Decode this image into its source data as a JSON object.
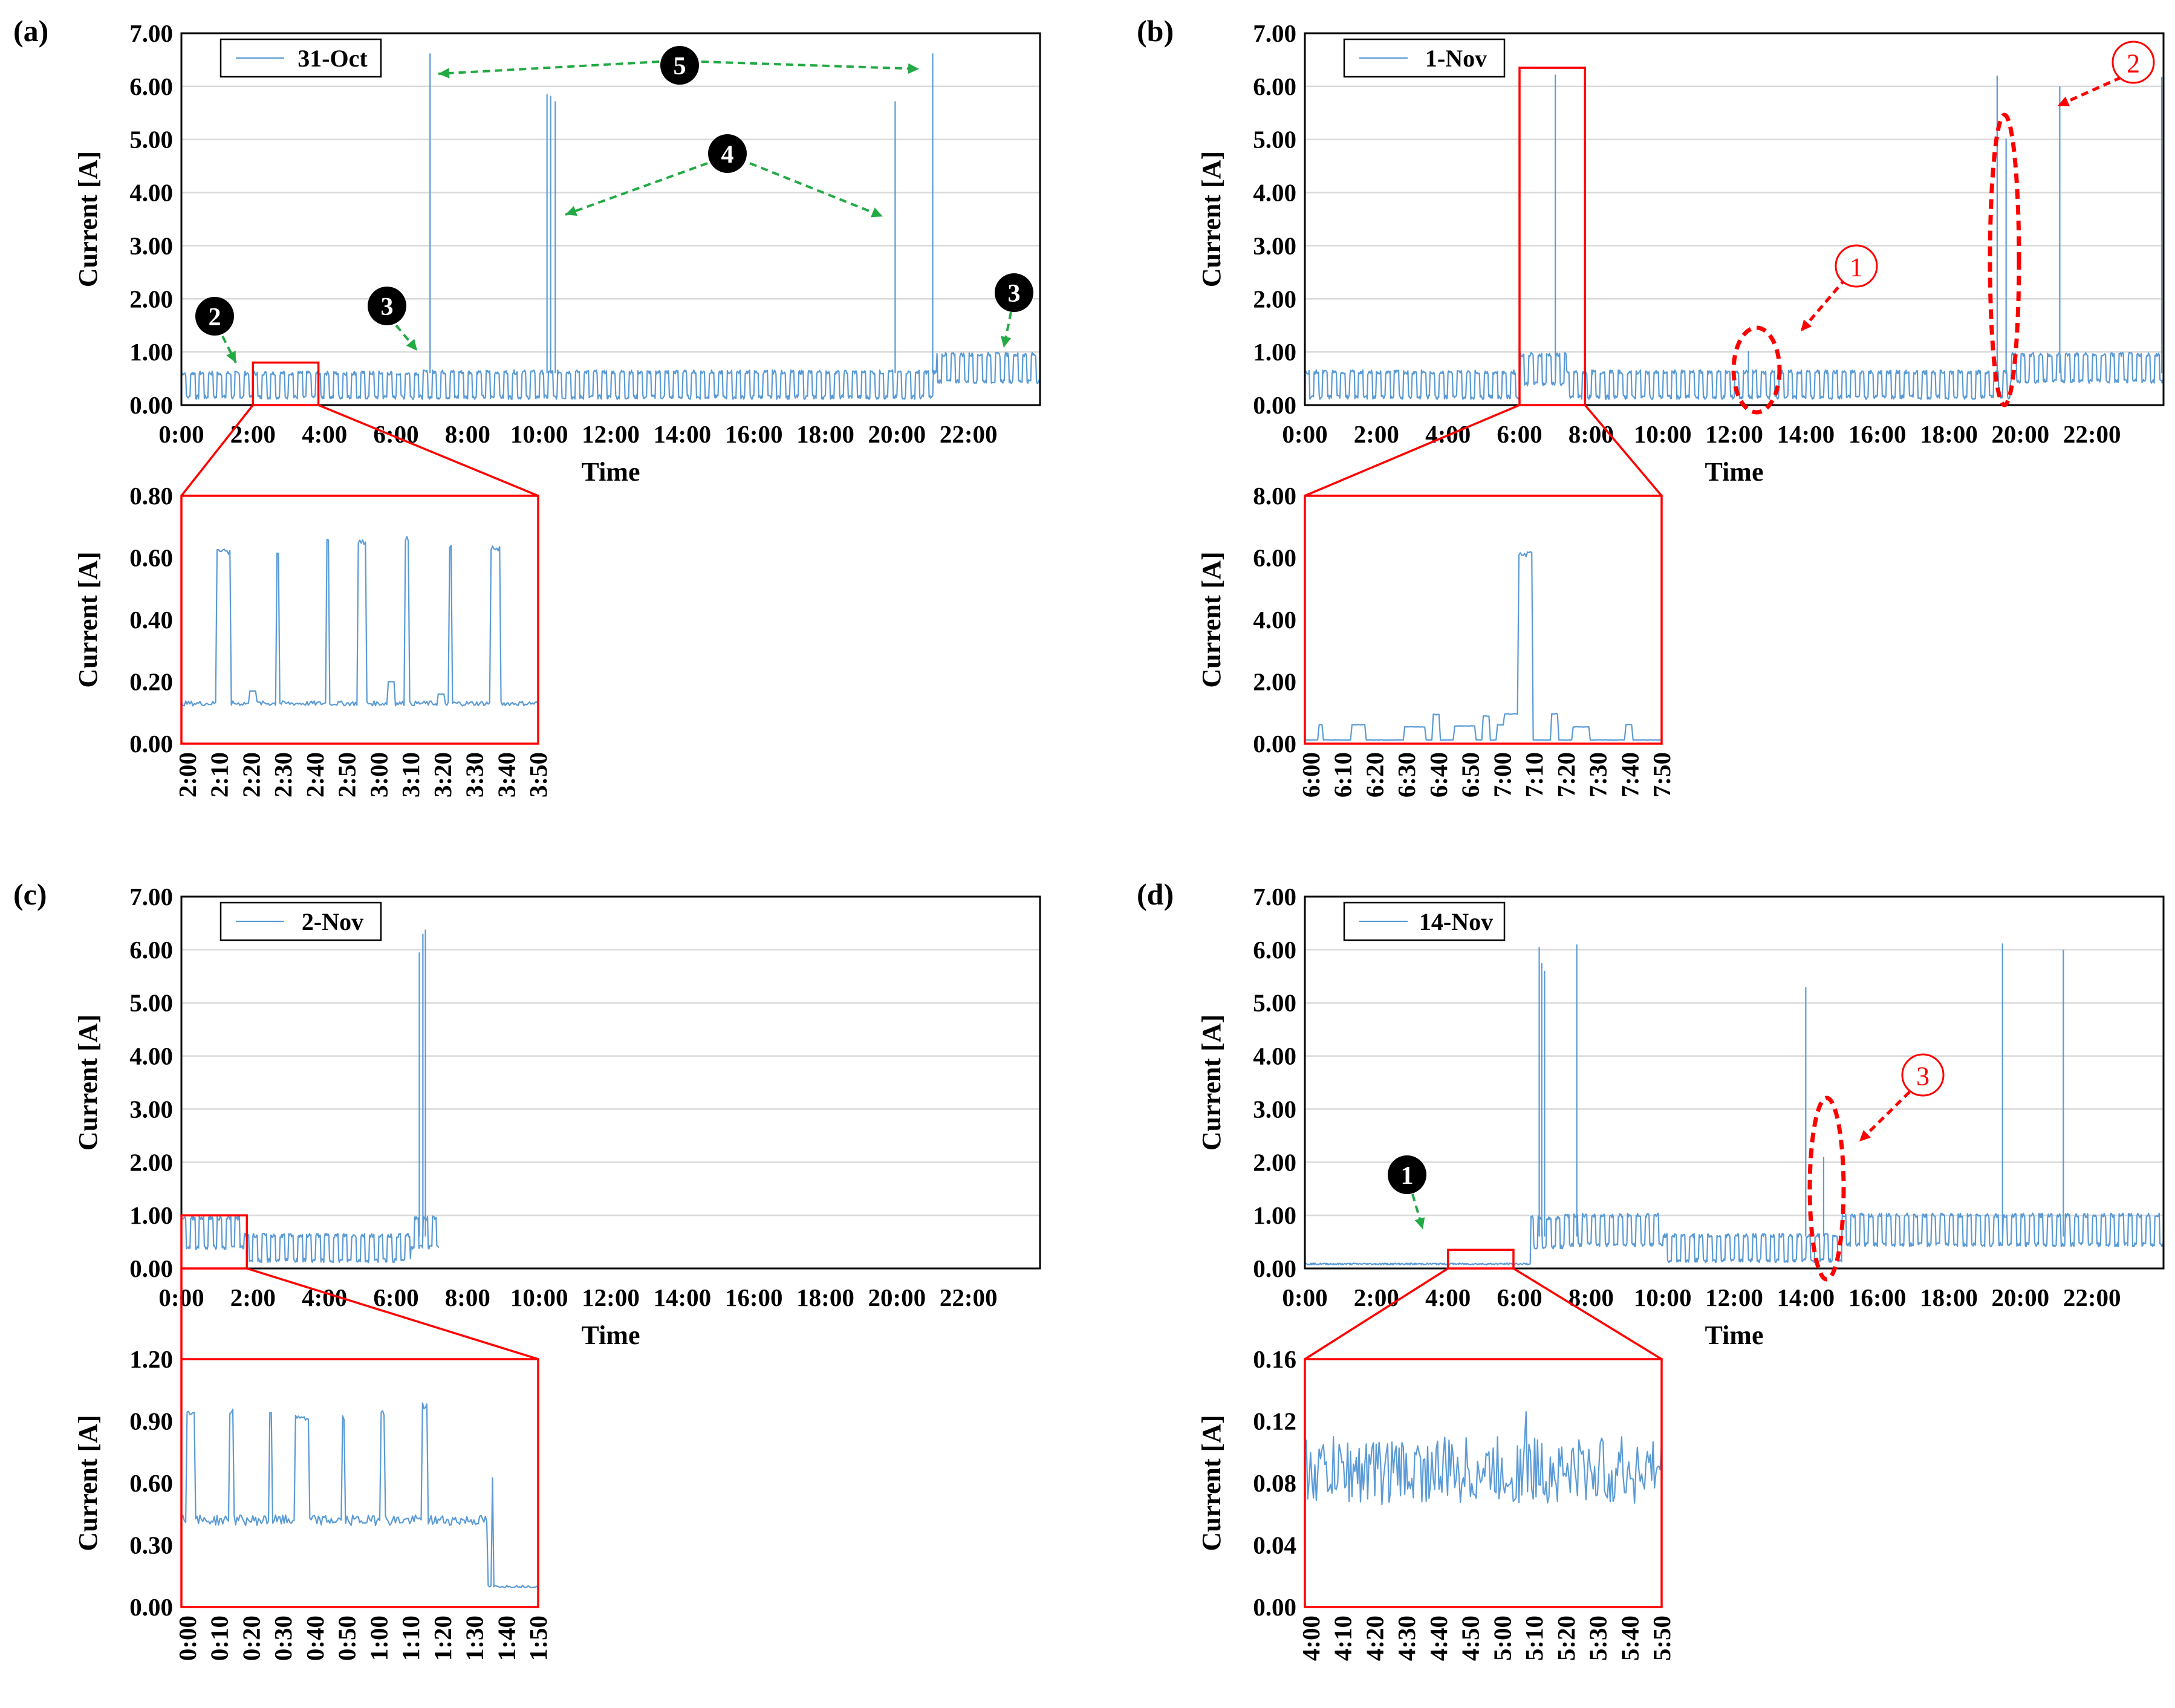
{
  "colors": {
    "series": "#5b9bd5",
    "zoom": "#ff0000",
    "arrow": "#22aa44",
    "grid": "#d9d9d9"
  },
  "axis_titles": {
    "y": "Current [A]",
    "x": "Time"
  },
  "chart_data": [
    {
      "id": "a",
      "panel_label": "(a)",
      "type": "line",
      "legend": "31-Oct",
      "ylim": [
        0,
        7
      ],
      "y_ticks": [
        "0.00",
        "1.00",
        "2.00",
        "3.00",
        "4.00",
        "5.00",
        "6.00",
        "7.00"
      ],
      "x_ticks": [
        "0:00",
        "2:00",
        "4:00",
        "6:00",
        "8:00",
        "10:00",
        "12:00",
        "14:00",
        "16:00",
        "18:00",
        "20:00",
        "22:00"
      ],
      "baseline_segments": [
        {
          "from": 0,
          "to": 6.7,
          "low": 0.15,
          "high": 0.6
        },
        {
          "from": 6.7,
          "to": 21.1,
          "low": 0.15,
          "high": 0.62
        },
        {
          "from": 21.1,
          "to": 24,
          "low": 0.45,
          "high": 0.95
        }
      ],
      "cycle_period_h": 0.25,
      "spikes": [
        {
          "t": 6.95,
          "v": 6.62
        },
        {
          "t": 10.22,
          "v": 5.85
        },
        {
          "t": 10.32,
          "v": 5.82
        },
        {
          "t": 10.45,
          "v": 5.72
        },
        {
          "t": 19.95,
          "v": 5.72
        },
        {
          "t": 21.0,
          "v": 6.62
        }
      ],
      "zoom_range_h": [
        2.0,
        3.83
      ],
      "zoom_y_range": [
        0,
        0.8
      ],
      "zoom": {
        "ylim": [
          0,
          0.8
        ],
        "y_ticks": [
          "0.00",
          "0.20",
          "0.40",
          "0.60",
          "0.80"
        ],
        "x_ticks": [
          "2:00",
          "2:10",
          "2:20",
          "2:30",
          "2:40",
          "2:50",
          "3:00",
          "3:10",
          "3:20",
          "3:30",
          "3:40",
          "3:50"
        ],
        "baseline": 0.13,
        "pulses": [
          {
            "start": 0.1,
            "end": 0.14,
            "v": 0.63
          },
          {
            "start": 0.265,
            "end": 0.275,
            "v": 0.62
          },
          {
            "start": 0.405,
            "end": 0.415,
            "v": 0.67
          },
          {
            "start": 0.495,
            "end": 0.52,
            "v": 0.66
          },
          {
            "start": 0.625,
            "end": 0.64,
            "v": 0.67
          },
          {
            "start": 0.75,
            "end": 0.76,
            "v": 0.65
          },
          {
            "start": 0.865,
            "end": 0.895,
            "v": 0.64
          }
        ],
        "bumps": [
          {
            "at": 0.2,
            "v": 0.17
          },
          {
            "at": 0.59,
            "v": 0.2
          },
          {
            "at": 0.73,
            "v": 0.16
          }
        ]
      },
      "markers": [
        {
          "label": "2",
          "style": "black",
          "arrow_text": ""
        },
        {
          "label": "3",
          "style": "black",
          "arrow_text": ""
        },
        {
          "label": "3",
          "style": "black",
          "arrow_text": ""
        },
        {
          "label": "4",
          "style": "black",
          "arrow_text": ""
        },
        {
          "label": "5",
          "style": "black",
          "arrow_text": ""
        }
      ]
    },
    {
      "id": "b",
      "panel_label": "(b)",
      "type": "line",
      "legend": "1-Nov",
      "ylim": [
        0,
        7
      ],
      "y_ticks": [
        "0.00",
        "1.00",
        "2.00",
        "3.00",
        "4.00",
        "5.00",
        "6.00",
        "7.00"
      ],
      "x_ticks": [
        "0:00",
        "2:00",
        "4:00",
        "6:00",
        "8:00",
        "10:00",
        "12:00",
        "14:00",
        "16:00",
        "18:00",
        "20:00",
        "22:00"
      ],
      "baseline_segments": [
        {
          "from": 0,
          "to": 6.0,
          "low": 0.15,
          "high": 0.62
        },
        {
          "from": 6.0,
          "to": 7.3,
          "low": 0.4,
          "high": 0.95
        },
        {
          "from": 7.3,
          "to": 19.7,
          "low": 0.15,
          "high": 0.62
        },
        {
          "from": 19.7,
          "to": 24,
          "low": 0.45,
          "high": 0.95
        }
      ],
      "cycle_period_h": 0.25,
      "spikes": [
        {
          "t": 7.0,
          "v": 6.22
        },
        {
          "t": 12.4,
          "v": 1.02
        },
        {
          "t": 19.35,
          "v": 6.2
        },
        {
          "t": 19.6,
          "v": 5.02
        },
        {
          "t": 21.1,
          "v": 6.0
        },
        {
          "t": 23.95,
          "v": 6.18
        }
      ],
      "zoom_range_h": [
        6.0,
        7.83
      ],
      "zoom_y_range": [
        0,
        6.35
      ],
      "zoom": {
        "ylim": [
          0,
          8
        ],
        "y_ticks": [
          "0.00",
          "2.00",
          "4.00",
          "6.00",
          "8.00"
        ],
        "x_ticks": [
          "6:00",
          "6:10",
          "6:20",
          "6:30",
          "6:40",
          "6:50",
          "7:00",
          "7:10",
          "7:20",
          "7:30",
          "7:40",
          "7:50"
        ],
        "baseline": 0.12,
        "pulses": [
          {
            "start": 0.04,
            "end": 0.05,
            "v": 0.62
          },
          {
            "start": 0.13,
            "end": 0.17,
            "v": 0.62
          },
          {
            "start": 0.28,
            "end": 0.34,
            "v": 0.55
          },
          {
            "start": 0.36,
            "end": 0.38,
            "v": 0.95
          },
          {
            "start": 0.42,
            "end": 0.48,
            "v": 0.58
          },
          {
            "start": 0.5,
            "end": 0.52,
            "v": 0.9
          },
          {
            "start": 0.54,
            "end": 0.56,
            "v": 0.62
          },
          {
            "start": 0.56,
            "end": 0.6,
            "v": 0.98
          },
          {
            "start": 0.6,
            "end": 0.64,
            "v": 6.2
          },
          {
            "start": 0.69,
            "end": 0.71,
            "v": 0.98
          },
          {
            "start": 0.75,
            "end": 0.8,
            "v": 0.55
          },
          {
            "start": 0.9,
            "end": 0.92,
            "v": 0.62
          }
        ],
        "bumps": []
      },
      "markers": [
        {
          "label": "1",
          "style": "red",
          "arrow_text": ""
        },
        {
          "label": "2",
          "style": "red",
          "arrow_text": ""
        }
      ]
    },
    {
      "id": "c",
      "panel_label": "(c)",
      "type": "line",
      "legend": "2-Nov",
      "ylim": [
        0,
        7
      ],
      "y_ticks": [
        "0.00",
        "1.00",
        "2.00",
        "3.00",
        "4.00",
        "5.00",
        "6.00",
        "7.00"
      ],
      "x_ticks": [
        "0:00",
        "2:00",
        "4:00",
        "6:00",
        "8:00",
        "10:00",
        "12:00",
        "14:00",
        "16:00",
        "18:00",
        "20:00",
        "22:00"
      ],
      "baseline_segments": [
        {
          "from": 0,
          "to": 1.75,
          "low": 0.4,
          "high": 0.95
        },
        {
          "from": 1.75,
          "to": 6.4,
          "low": 0.15,
          "high": 0.62
        },
        {
          "from": 6.4,
          "to": 7.2,
          "low": 0.4,
          "high": 0.95
        }
      ],
      "cycle_period_h": 0.25,
      "data_end_h": 7.2,
      "spikes": [
        {
          "t": 6.65,
          "v": 5.95
        },
        {
          "t": 6.75,
          "v": 6.3
        },
        {
          "t": 6.82,
          "v": 6.38
        }
      ],
      "zoom_range_h": [
        0.0,
        1.83
      ],
      "zoom_y_range": [
        0,
        1.0
      ],
      "zoom": {
        "ylim": [
          0,
          1.2
        ],
        "y_ticks": [
          "0.00",
          "0.30",
          "0.60",
          "0.90",
          "1.20"
        ],
        "x_ticks": [
          "0:00",
          "0:10",
          "0:20",
          "0:30",
          "0:40",
          "0:50",
          "1:00",
          "1:10",
          "1:20",
          "1:30",
          "1:40",
          "1:50"
        ],
        "baseline": 0.42,
        "late_baseline": {
          "from": 0.86,
          "v": 0.1
        },
        "pulses": [
          {
            "start": 0.015,
            "end": 0.04,
            "v": 0.95
          },
          {
            "start": 0.135,
            "end": 0.145,
            "v": 0.96
          },
          {
            "start": 0.245,
            "end": 0.255,
            "v": 0.95
          },
          {
            "start": 0.32,
            "end": 0.36,
            "v": 0.93
          },
          {
            "start": 0.45,
            "end": 0.46,
            "v": 0.93
          },
          {
            "start": 0.56,
            "end": 0.57,
            "v": 0.95
          },
          {
            "start": 0.675,
            "end": 0.69,
            "v": 0.99
          },
          {
            "start": 0.87,
            "end": 0.875,
            "v": 0.64
          }
        ],
        "bumps": []
      },
      "markers": []
    },
    {
      "id": "d",
      "panel_label": "(d)",
      "type": "line",
      "legend": "14-Nov",
      "ylim": [
        0,
        7
      ],
      "y_ticks": [
        "0.00",
        "1.00",
        "2.00",
        "3.00",
        "4.00",
        "5.00",
        "6.00",
        "7.00"
      ],
      "x_ticks": [
        "0:00",
        "2:00",
        "4:00",
        "6:00",
        "8:00",
        "10:00",
        "12:00",
        "14:00",
        "16:00",
        "18:00",
        "20:00",
        "22:00"
      ],
      "baseline_segments": [
        {
          "from": 0,
          "to": 6.3,
          "low": 0.07,
          "high": 0.1
        },
        {
          "from": 6.3,
          "to": 7.2,
          "low": 0.4,
          "high": 0.95
        },
        {
          "from": 7.2,
          "to": 10.0,
          "low": 0.45,
          "high": 1.0
        },
        {
          "from": 10.0,
          "to": 15.0,
          "low": 0.15,
          "high": 0.62
        },
        {
          "from": 15.0,
          "to": 16.7,
          "low": 0.45,
          "high": 1.0
        },
        {
          "from": 16.7,
          "to": 24,
          "low": 0.45,
          "high": 1.0
        }
      ],
      "cycle_period_h": 0.25,
      "spikes": [
        {
          "t": 6.55,
          "v": 6.05
        },
        {
          "t": 6.62,
          "v": 5.75
        },
        {
          "t": 6.7,
          "v": 5.6
        },
        {
          "t": 7.6,
          "v": 6.1
        },
        {
          "t": 14.0,
          "v": 5.3
        },
        {
          "t": 14.5,
          "v": 2.1
        },
        {
          "t": 19.5,
          "v": 6.12
        },
        {
          "t": 21.2,
          "v": 6.0
        }
      ],
      "zoom_range_h": [
        4.0,
        5.83
      ],
      "zoom_y_range": [
        0,
        0.35
      ],
      "zoom": {
        "ylim": [
          0,
          0.16
        ],
        "y_ticks": [
          "0.00",
          "0.04",
          "0.08",
          "0.12",
          "0.16"
        ],
        "x_ticks": [
          "4:00",
          "4:10",
          "4:20",
          "4:30",
          "4:40",
          "4:50",
          "5:00",
          "5:10",
          "5:20",
          "5:30",
          "5:40",
          "5:50"
        ],
        "noise": {
          "center": 0.088,
          "amplitude": 0.022,
          "peak": 0.126
        },
        "pulses": [],
        "bumps": []
      },
      "markers": [
        {
          "label": "1",
          "style": "black",
          "arrow_text": ""
        },
        {
          "label": "3",
          "style": "red",
          "arrow_text": ""
        }
      ]
    }
  ]
}
